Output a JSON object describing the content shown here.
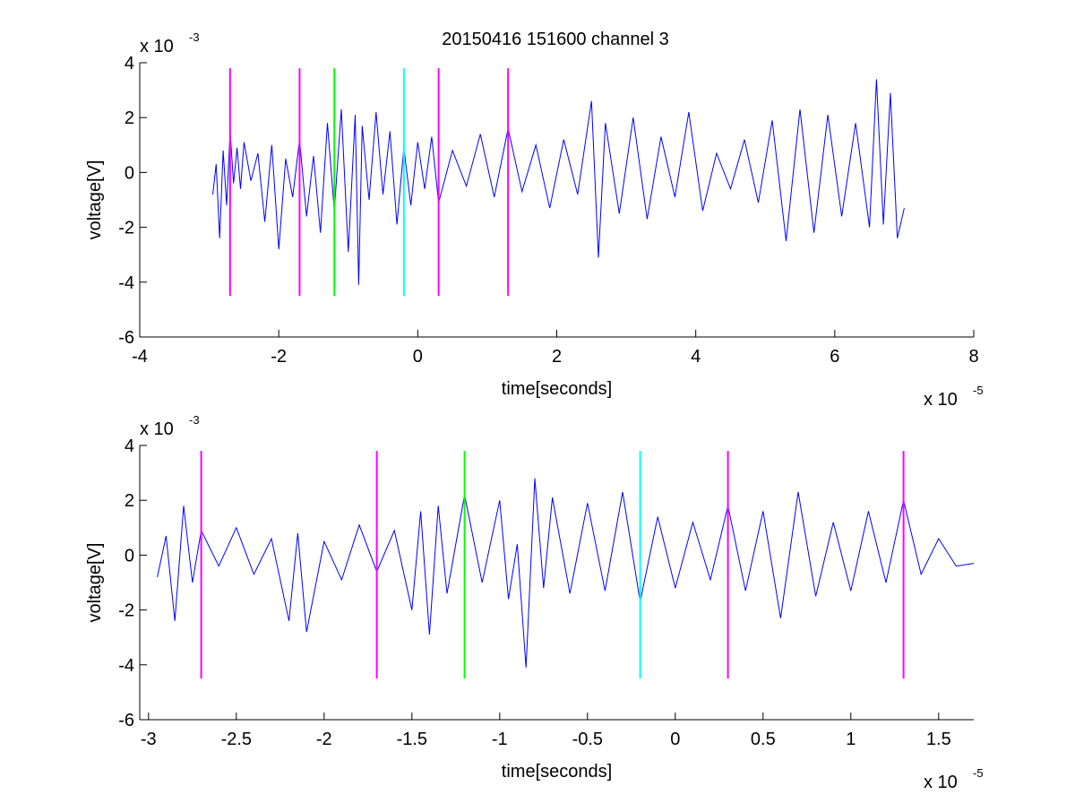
{
  "figure": {
    "title": "20150416 151600 channel 3"
  },
  "chart_data": [
    {
      "type": "line",
      "xlabel": "time[seconds]",
      "ylabel": "voltage[V]",
      "x_exponent_label": "x 10",
      "x_exponent": "-5",
      "y_exponent_label": "x 10",
      "y_exponent": "-3",
      "xlim": [
        -4,
        8
      ],
      "ylim": [
        -6,
        4
      ],
      "x_ticks": [
        -4,
        -2,
        0,
        2,
        4,
        6,
        8
      ],
      "x_tick_labels": [
        "-4",
        "-2",
        "0",
        "2",
        "4",
        "6",
        "8"
      ],
      "y_ticks": [
        -6,
        -4,
        -2,
        0,
        2,
        4
      ],
      "y_tick_labels": [
        "-6",
        "-4",
        "-2",
        "0",
        "2",
        "4"
      ],
      "grid": false,
      "series_color": "#0000ff",
      "series": [
        {
          "x": [
            -2.95,
            -2.9,
            -2.85,
            -2.8,
            -2.75,
            -2.7,
            -2.65,
            -2.6,
            -2.55,
            -2.5,
            -2.4,
            -2.3,
            -2.2,
            -2.1,
            -2.0,
            -1.9,
            -1.8,
            -1.7,
            -1.6,
            -1.5,
            -1.4,
            -1.3,
            -1.2,
            -1.1,
            -1.0,
            -0.9,
            -0.85,
            -0.8,
            -0.7,
            -0.6,
            -0.5,
            -0.4,
            -0.3,
            -0.2,
            -0.1,
            0.0,
            0.1,
            0.2,
            0.3,
            0.5,
            0.7,
            0.9,
            1.1,
            1.3,
            1.5,
            1.7,
            1.9,
            2.1,
            2.3,
            2.5,
            2.6,
            2.7,
            2.9,
            3.1,
            3.3,
            3.5,
            3.7,
            3.9,
            4.1,
            4.3,
            4.5,
            4.7,
            4.9,
            5.1,
            5.3,
            5.5,
            5.7,
            5.9,
            6.1,
            6.3,
            6.5,
            6.6,
            6.7,
            6.8,
            6.9,
            7.0
          ],
          "y": [
            -0.8,
            0.3,
            -2.4,
            0.8,
            -1.2,
            1.5,
            -0.4,
            0.9,
            -0.6,
            1.1,
            -0.3,
            0.7,
            -1.8,
            1.0,
            -2.8,
            0.5,
            -0.9,
            1.2,
            -1.6,
            0.6,
            -2.2,
            1.8,
            -1.4,
            2.3,
            -2.9,
            2.1,
            -4.1,
            1.7,
            -1.0,
            2.2,
            -0.8,
            1.5,
            -1.9,
            0.9,
            -1.2,
            1.1,
            -0.6,
            1.3,
            -1.1,
            0.8,
            -0.5,
            1.4,
            -0.9,
            1.6,
            -0.7,
            1.0,
            -1.3,
            1.2,
            -0.8,
            2.6,
            -3.1,
            1.8,
            -1.5,
            2.0,
            -1.7,
            1.3,
            -0.9,
            2.2,
            -1.4,
            0.7,
            -0.6,
            1.2,
            -1.1,
            1.9,
            -2.5,
            2.3,
            -2.2,
            2.1,
            -1.6,
            1.8,
            -2.0,
            3.4,
            -1.9,
            2.9,
            -2.4,
            -1.3
          ],
          "markers": [
            {
              "x": -2.7,
              "color": "#ff00ff"
            },
            {
              "x": -1.7,
              "color": "#ff00ff"
            },
            {
              "x": -1.2,
              "color": "#00ff00"
            },
            {
              "x": -0.2,
              "color": "#00ffff"
            },
            {
              "x": 0.3,
              "color": "#ff00ff"
            },
            {
              "x": 1.3,
              "color": "#ff00ff"
            }
          ],
          "marker_y_range": [
            -4.5,
            3.8
          ]
        }
      ]
    },
    {
      "type": "line",
      "xlabel": "time[seconds]",
      "ylabel": "voltage[V]",
      "x_exponent_label": "x 10",
      "x_exponent": "-5",
      "y_exponent_label": "x 10",
      "y_exponent": "-3",
      "xlim": [
        -3.05,
        1.7
      ],
      "ylim": [
        -6,
        4
      ],
      "x_ticks": [
        -3,
        -2.5,
        -2,
        -1.5,
        -1,
        -0.5,
        0,
        0.5,
        1,
        1.5
      ],
      "x_tick_labels": [
        "-3",
        "-2.5",
        "-2",
        "-1.5",
        "-1",
        "-0.5",
        "0",
        "0.5",
        "1",
        "1.5"
      ],
      "y_ticks": [
        -6,
        -4,
        -2,
        0,
        2,
        4
      ],
      "y_tick_labels": [
        "-6",
        "-4",
        "-2",
        "0",
        "2",
        "4"
      ],
      "grid": false,
      "series_color": "#0000ff",
      "series": [
        {
          "x": [
            -2.95,
            -2.9,
            -2.85,
            -2.8,
            -2.75,
            -2.7,
            -2.6,
            -2.5,
            -2.4,
            -2.3,
            -2.2,
            -2.15,
            -2.1,
            -2.0,
            -1.9,
            -1.8,
            -1.7,
            -1.6,
            -1.5,
            -1.45,
            -1.4,
            -1.35,
            -1.3,
            -1.2,
            -1.1,
            -1.0,
            -0.95,
            -0.9,
            -0.85,
            -0.8,
            -0.75,
            -0.7,
            -0.6,
            -0.5,
            -0.4,
            -0.3,
            -0.2,
            -0.1,
            0.0,
            0.1,
            0.2,
            0.3,
            0.4,
            0.5,
            0.6,
            0.7,
            0.8,
            0.9,
            1.0,
            1.1,
            1.2,
            1.3,
            1.4,
            1.5,
            1.6,
            1.7
          ],
          "y": [
            -0.8,
            0.7,
            -2.4,
            1.8,
            -1.0,
            0.9,
            -0.4,
            1.0,
            -0.7,
            0.6,
            -2.4,
            0.8,
            -2.8,
            0.5,
            -0.9,
            1.1,
            -0.6,
            0.9,
            -2.0,
            1.6,
            -2.9,
            1.8,
            -1.4,
            2.2,
            -1.0,
            2.0,
            -1.6,
            0.4,
            -4.1,
            2.8,
            -1.2,
            2.1,
            -1.4,
            1.9,
            -1.3,
            2.3,
            -1.7,
            1.4,
            -1.2,
            1.2,
            -0.9,
            1.8,
            -1.3,
            1.6,
            -2.3,
            2.3,
            -1.5,
            1.2,
            -1.3,
            1.6,
            -1.0,
            2.0,
            -0.7,
            0.6,
            -0.4,
            -0.3
          ],
          "markers": [
            {
              "x": -2.7,
              "color": "#ff00ff"
            },
            {
              "x": -1.7,
              "color": "#ff00ff"
            },
            {
              "x": -1.2,
              "color": "#00ff00"
            },
            {
              "x": -0.2,
              "color": "#00ffff"
            },
            {
              "x": 0.3,
              "color": "#ff00ff"
            },
            {
              "x": 1.3,
              "color": "#ff00ff"
            }
          ],
          "marker_y_range": [
            -4.5,
            3.8
          ]
        }
      ]
    }
  ]
}
